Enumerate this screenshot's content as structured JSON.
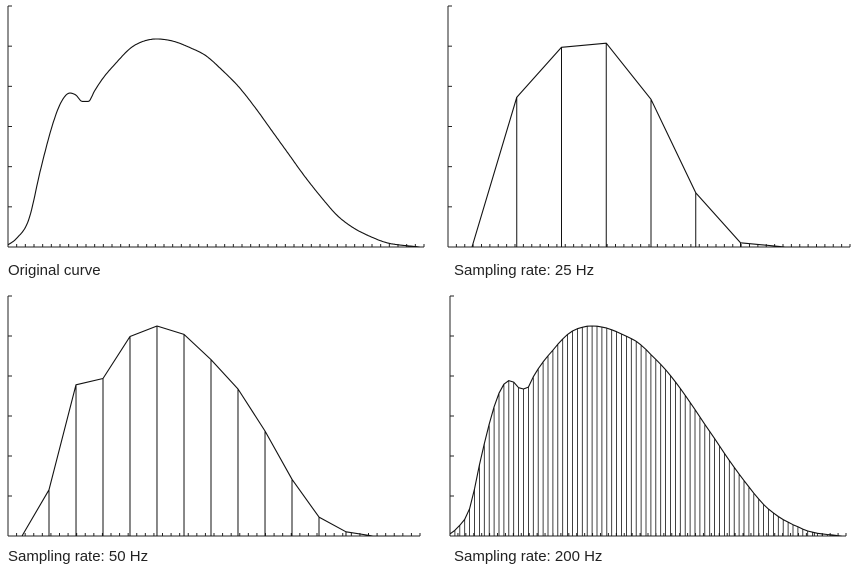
{
  "chart_data": [
    {
      "type": "line",
      "title": "Original curve",
      "xlim": [
        0,
        1
      ],
      "ylim": [
        0,
        1
      ],
      "grid": false,
      "x": [
        0,
        0.02,
        0.05,
        0.08,
        0.11,
        0.13,
        0.15,
        0.165,
        0.18,
        0.195,
        0.21,
        0.23,
        0.26,
        0.3,
        0.33,
        0.36,
        0.4,
        0.44,
        0.48,
        0.52,
        0.56,
        0.6,
        0.64,
        0.68,
        0.72,
        0.76,
        0.8,
        0.84,
        0.88,
        0.92,
        0.95,
        0.98,
        1.0
      ],
      "y": [
        0.01,
        0.04,
        0.13,
        0.38,
        0.6,
        0.7,
        0.74,
        0.73,
        0.7,
        0.7,
        0.75,
        0.81,
        0.88,
        0.96,
        0.99,
        1.0,
        0.99,
        0.96,
        0.92,
        0.85,
        0.77,
        0.67,
        0.56,
        0.45,
        0.34,
        0.24,
        0.15,
        0.09,
        0.05,
        0.02,
        0.01,
        0.004,
        0.0
      ]
    },
    {
      "type": "line",
      "title": "Sampling rate: 25 Hz",
      "xlim": [
        0,
        1
      ],
      "ylim": [
        0,
        1
      ],
      "grid": false,
      "x": [
        0.0,
        0.125,
        0.25,
        0.375,
        0.5,
        0.625,
        0.75,
        0.875,
        1.0
      ],
      "y": [
        0.0,
        0.72,
        0.96,
        0.98,
        0.71,
        0.26,
        0.02,
        0.0,
        0.0
      ]
    },
    {
      "type": "line",
      "title": "Sampling rate: 50 Hz",
      "xlim": [
        0,
        1
      ],
      "ylim": [
        0,
        1
      ],
      "grid": false,
      "x": [
        0.0,
        0.0714,
        0.1429,
        0.2143,
        0.2857,
        0.3571,
        0.4286,
        0.5,
        0.5714,
        0.6429,
        0.7143,
        0.7857,
        0.8571,
        0.9286,
        1.0
      ],
      "y": [
        0.0,
        0.22,
        0.72,
        0.75,
        0.95,
        1.0,
        0.96,
        0.84,
        0.7,
        0.5,
        0.27,
        0.09,
        0.02,
        0.0,
        0.0
      ]
    },
    {
      "type": "line",
      "title": "Sampling rate: 200 Hz",
      "xlim": [
        0,
        1
      ],
      "ylim": [
        0,
        1
      ],
      "grid": false,
      "x": [],
      "y": []
    }
  ]
}
